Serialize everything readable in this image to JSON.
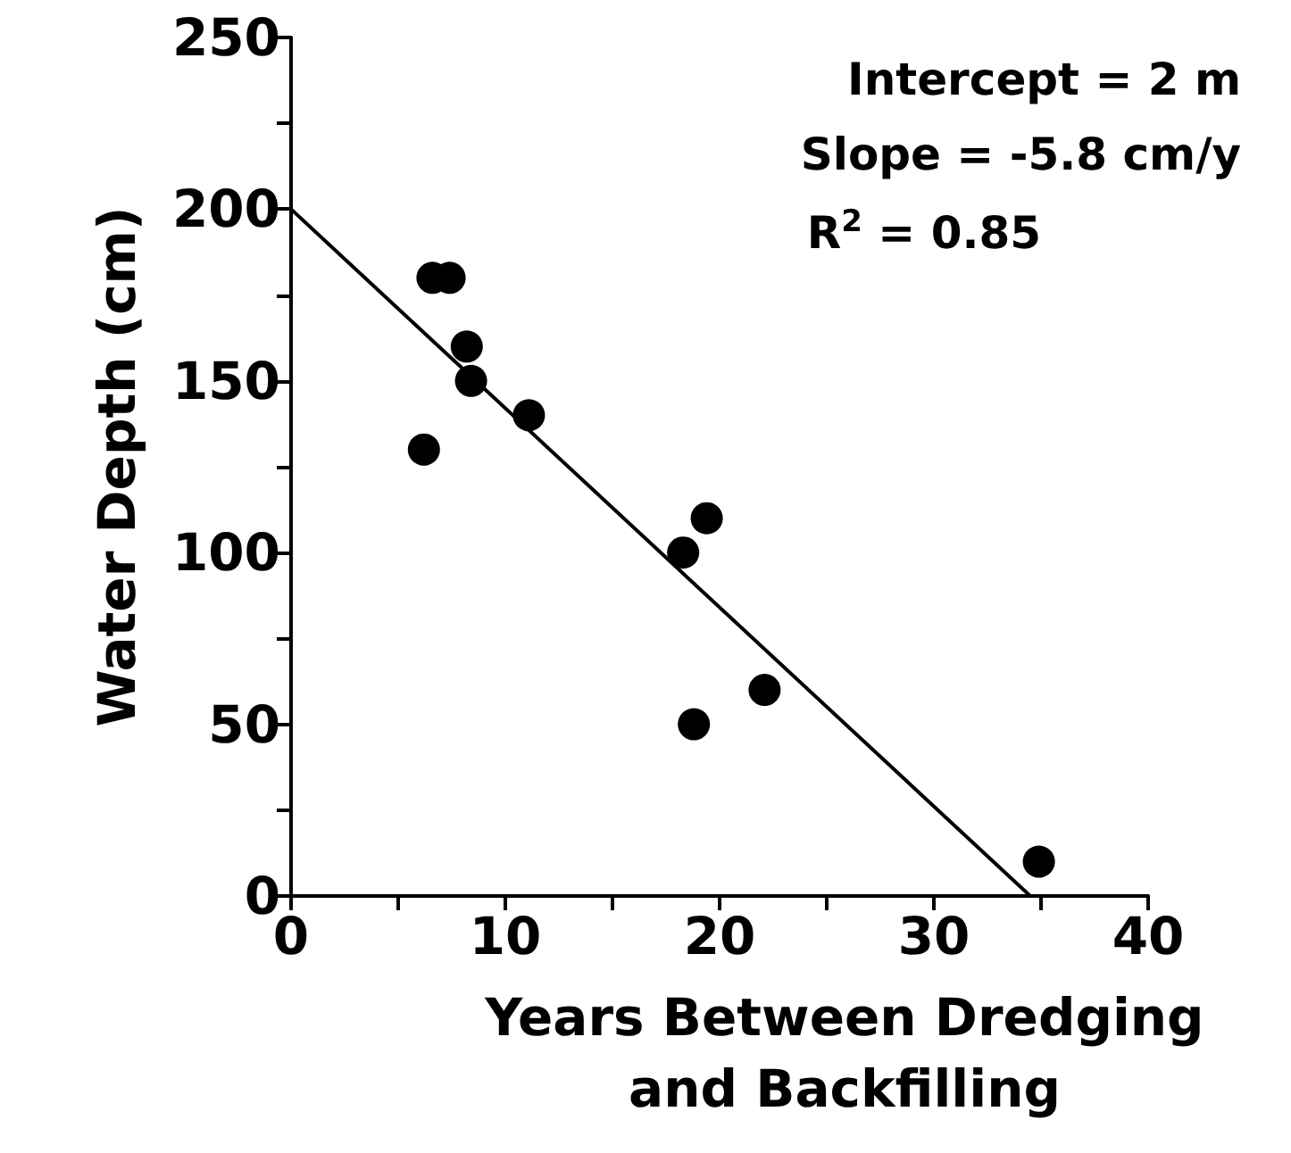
{
  "chart_data": {
    "type": "scatter",
    "xlabel": "Years Between Dredging and Backfilling",
    "ylabel": "Water Depth (cm)",
    "annotations": [
      "Intercept = 2 m",
      "Slope = -5.8 cm/y",
      "R$^{2}$ = 0.85"
    ],
    "series": [
      {
        "color": "#000000",
        "marker": "circle",
        "x": [
          6.6,
          7.4,
          8.2,
          8.4,
          11.1,
          6.2,
          19.4,
          18.3,
          22.1,
          18.8,
          34.9
        ],
        "values": [
          180,
          180,
          160,
          150,
          140,
          130,
          110,
          100,
          60,
          50,
          10
        ]
      },
      {
        "type": "line",
        "color": "#000000",
        "marker": "none",
        "line_style": "solid",
        "x": [
          0,
          34.5
        ],
        "values": [
          200,
          0
        ]
      }
    ],
    "xlim": [
      0,
      40
    ],
    "xticks": [
      0,
      {
        "value": 5,
        "label": null
      },
      10,
      {
        "value": 15,
        "label": null
      },
      20,
      {
        "value": 25,
        "label": null
      },
      30,
      {
        "value": 35,
        "label": null
      },
      40
    ],
    "ylim": [
      0,
      250
    ],
    "yticks": [
      0,
      {
        "value": 25,
        "label": null
      },
      50,
      {
        "value": 75,
        "label": null
      },
      100,
      {
        "value": 125,
        "label": null
      },
      150,
      {
        "value": 175,
        "label": null
      },
      200,
      {
        "value": 225,
        "label": null
      },
      250
    ],
    "grid": false
  }
}
